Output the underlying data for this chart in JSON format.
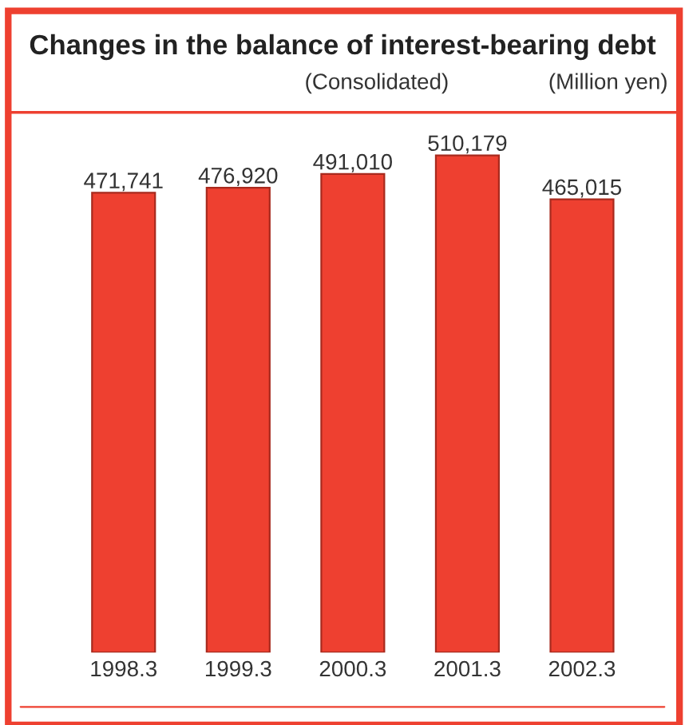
{
  "chart_data": {
    "type": "bar",
    "title": "Changes in the balance of interest-bearing debt",
    "subtitle": "(Consolidated)",
    "annotations": [
      "(Million yen)"
    ],
    "categories": [
      "1998.3",
      "1999.3",
      "2000.3",
      "2001.3",
      "2002.3"
    ],
    "values": [
      471741,
      476920,
      491010,
      510179,
      465015
    ],
    "value_labels": [
      "471,741",
      "476,920",
      "491,010",
      "510,179",
      "465,015"
    ],
    "color": "#ee4030",
    "grid": false,
    "legend": false
  }
}
